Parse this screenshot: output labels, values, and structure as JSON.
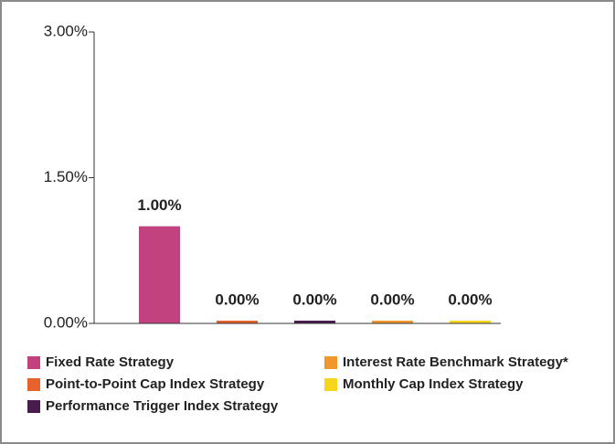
{
  "chart_data": {
    "type": "bar",
    "categories": [
      "Fixed Rate Strategy",
      "Point-to-Point Cap Index Strategy",
      "Performance Trigger Index Strategy",
      "Interest Rate Benchmark Strategy*",
      "Monthly Cap Index Strategy"
    ],
    "values": [
      1,
      0,
      0,
      0,
      0
    ],
    "value_labels": [
      "1.00%",
      "0.00%",
      "0.00%",
      "0.00%",
      "0.00%"
    ],
    "colors": [
      "#c2427f",
      "#e8622c",
      "#4b1a4f",
      "#f1962b",
      "#f8d51d"
    ],
    "ylim": [
      0,
      3
    ],
    "yticks": [
      {
        "value": 0,
        "label": "0.00%"
      },
      {
        "value": 1.5,
        "label": "1.50%"
      },
      {
        "value": 3,
        "label": "3.00%"
      }
    ],
    "grid": false
  }
}
